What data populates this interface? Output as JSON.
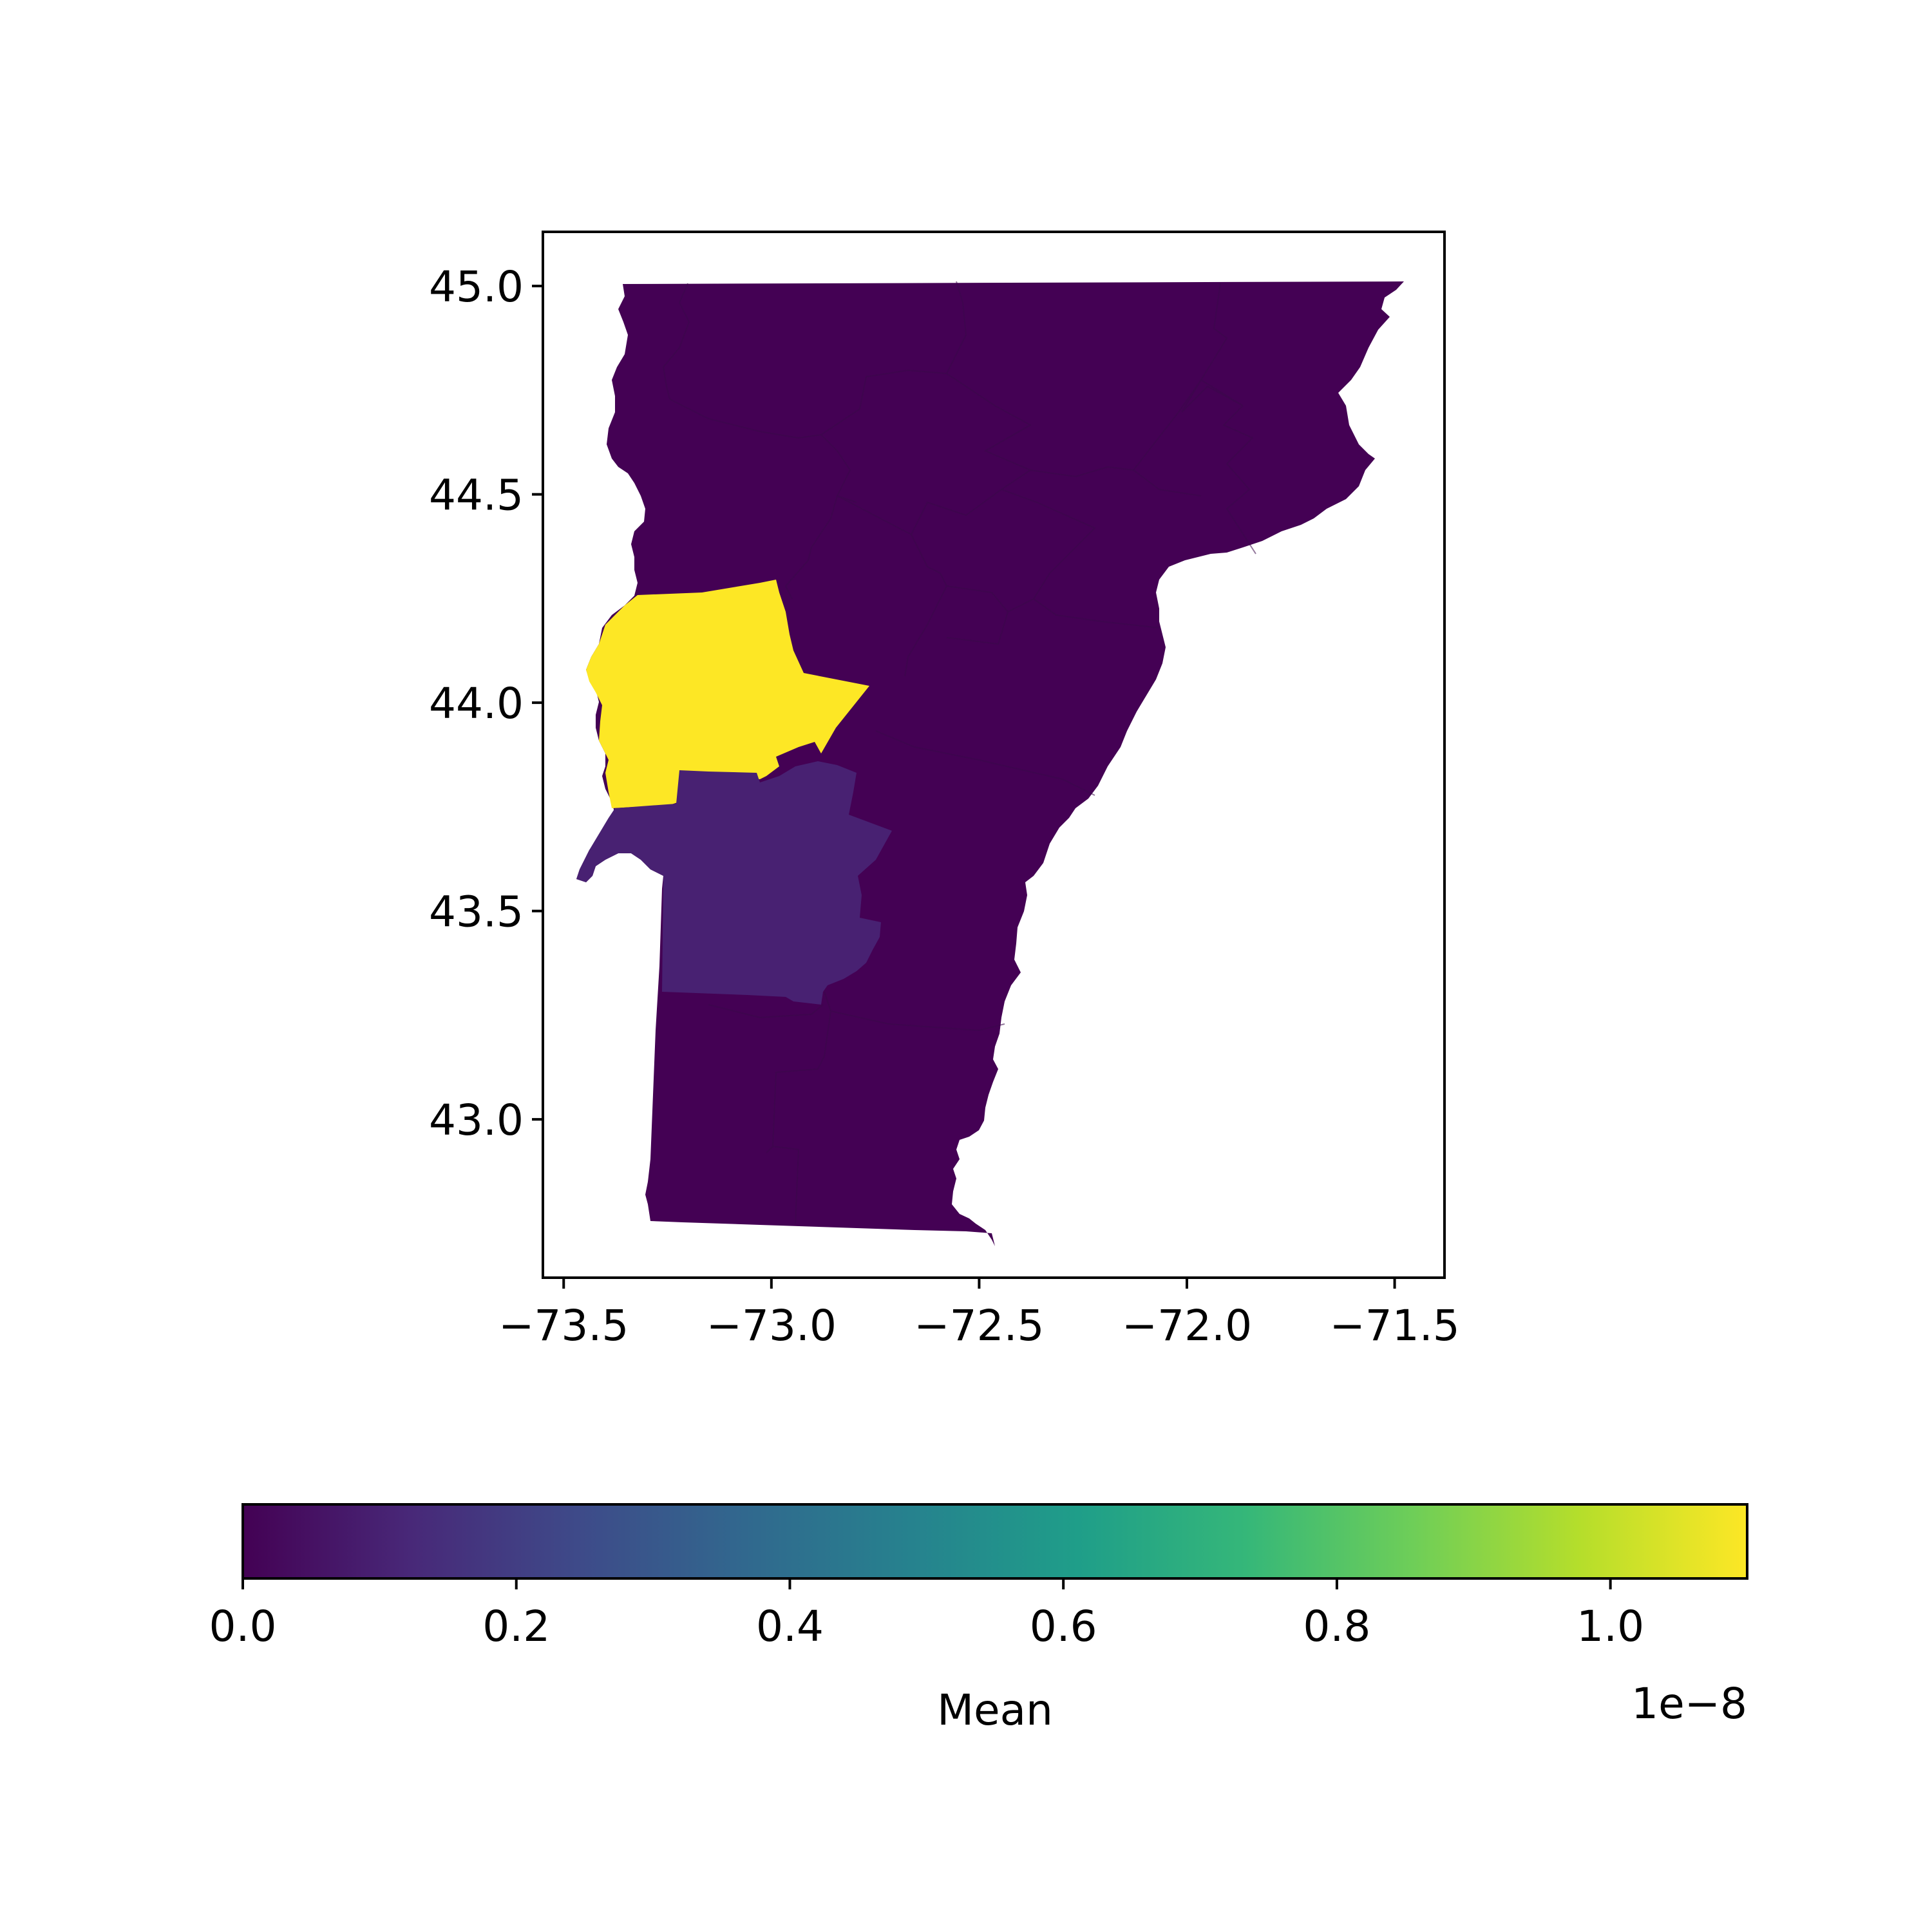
{
  "chart_data": {
    "type": "choropleth",
    "region": "Vermont counties",
    "x_axis": {
      "range": [
        -73.55,
        -71.38
      ],
      "ticks": [
        -73.5,
        -73.0,
        -72.5,
        -72.0,
        -71.5
      ],
      "tick_labels": [
        "−73.5",
        "−73.0",
        "−72.5",
        "−72.0",
        "−71.5"
      ]
    },
    "y_axis": {
      "range": [
        42.62,
        45.13
      ],
      "ticks": [
        43.0,
        43.5,
        44.0,
        44.5,
        45.0
      ],
      "tick_labels": [
        "43.0",
        "43.5",
        "44.0",
        "44.5",
        "45.0"
      ]
    },
    "grid": false,
    "colormap": "viridis",
    "colorbar": {
      "label": "Mean",
      "orientation": "horizontal",
      "placement": "bottom",
      "range": [
        0.0,
        1.1e-08
      ],
      "ticks": [
        0.0,
        0.2,
        0.4,
        0.6,
        0.8,
        1.0
      ],
      "tick_labels": [
        "0.0",
        "0.2",
        "0.4",
        "0.6",
        "0.8",
        "1.0"
      ],
      "offset_text": "1e−8"
    },
    "regions": [
      {
        "key": "addison",
        "value": 1.1e-08,
        "color": "#fde725"
      },
      {
        "key": "rutland",
        "value": 7e-10,
        "color": "#482172"
      },
      {
        "key": "other-counties",
        "value": 0.0,
        "color": "#440154"
      }
    ],
    "viridis_stops": [
      "#440154",
      "#482878",
      "#3e4a89",
      "#31688e",
      "#26828e",
      "#1f9e89",
      "#35b779",
      "#6ece58",
      "#b5de2b",
      "#fde725"
    ]
  }
}
